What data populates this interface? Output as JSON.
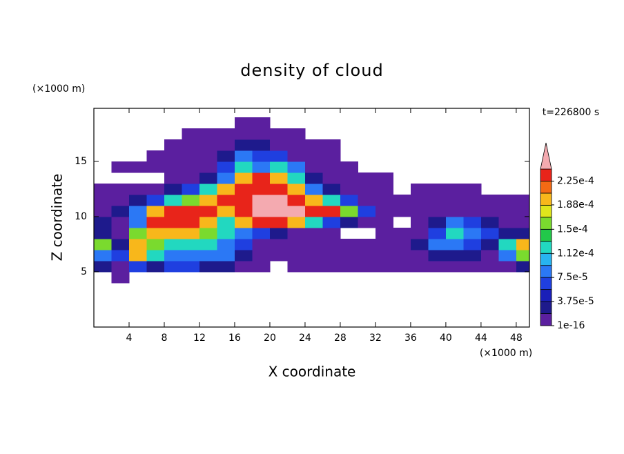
{
  "chart_data": {
    "type": "contour",
    "title": "density of cloud",
    "x_label": "X coordinate",
    "y_label": "Z coordinate",
    "x_unit": "(×1000 m)",
    "y_unit": "(×1000 m)",
    "annotation": "t=226800 s",
    "xlim": [
      0,
      49.5
    ],
    "ylim": [
      0,
      19.8
    ],
    "xticks": [
      4,
      8,
      12,
      16,
      20,
      24,
      28,
      32,
      36,
      40,
      44,
      48
    ],
    "yticks": [
      5,
      10,
      15
    ],
    "x": [
      1,
      3,
      5,
      7,
      9,
      11,
      13,
      15,
      17,
      19,
      21,
      23,
      25,
      27,
      29,
      31,
      33,
      35,
      37,
      39,
      41,
      43,
      45,
      47,
      49
    ],
    "y": [
      4.5,
      5.5,
      6.5,
      7.5,
      8.5,
      9.5,
      10.5,
      11.5,
      12.5,
      13.5,
      14.5,
      15.5,
      16.5,
      17.5,
      18.5
    ],
    "z": [
      [
        0,
        1e-05,
        0,
        0,
        0,
        0,
        0,
        0,
        0,
        0,
        0,
        0,
        0,
        0,
        0,
        0,
        0,
        0,
        0,
        0,
        0,
        0,
        0,
        0,
        0
      ],
      [
        3e-05,
        1e-05,
        6e-05,
        3e-05,
        6e-05,
        6e-05,
        3e-05,
        3e-05,
        1e-05,
        1e-05,
        0,
        1e-05,
        1e-05,
        1e-05,
        1e-05,
        1e-05,
        1e-05,
        1e-05,
        1e-05,
        1e-05,
        1e-05,
        1e-05,
        1e-05,
        1e-05,
        3e-05
      ],
      [
        9e-05,
        6e-05,
        0.0002,
        0.00012,
        9e-05,
        9e-05,
        9e-05,
        9e-05,
        3e-05,
        1e-05,
        1e-05,
        1e-05,
        1e-05,
        1e-05,
        1e-05,
        1e-05,
        1e-05,
        1e-05,
        1e-05,
        3e-05,
        3e-05,
        3e-05,
        1e-05,
        9e-05,
        0.00016
      ],
      [
        0.00016,
        3e-05,
        0.0002,
        0.00016,
        0.00012,
        0.00012,
        0.00012,
        9e-05,
        6e-05,
        1e-05,
        1e-05,
        1e-05,
        1e-05,
        1e-05,
        1e-05,
        1e-05,
        1e-05,
        1e-05,
        3e-05,
        9e-05,
        9e-05,
        6e-05,
        3e-05,
        0.00012,
        0.0002
      ],
      [
        3e-05,
        1e-05,
        0.00016,
        0.0002,
        0.0002,
        0.0002,
        0.00016,
        0.00012,
        9e-05,
        6e-05,
        3e-05,
        1e-05,
        1e-05,
        1e-05,
        0,
        0,
        1e-05,
        1e-05,
        1e-05,
        6e-05,
        0.00012,
        9e-05,
        6e-05,
        3e-05,
        3e-05
      ],
      [
        3e-05,
        1e-05,
        9e-05,
        0.00023,
        0.00023,
        0.00023,
        0.0002,
        0.00012,
        0.0002,
        0.00023,
        0.00023,
        0.0002,
        0.00012,
        6e-05,
        3e-05,
        1e-05,
        1e-05,
        0,
        1e-05,
        3e-05,
        9e-05,
        6e-05,
        3e-05,
        1e-05,
        1e-05
      ],
      [
        1e-05,
        3e-05,
        9e-05,
        0.0002,
        0.00023,
        0.00023,
        0.00023,
        0.0002,
        0.00023,
        0.00026,
        0.00026,
        0.00026,
        0.00023,
        0.00023,
        0.00016,
        6e-05,
        1e-05,
        1e-05,
        1e-05,
        1e-05,
        1e-05,
        1e-05,
        1e-05,
        1e-05,
        1e-05
      ],
      [
        1e-05,
        1e-05,
        3e-05,
        6e-05,
        0.00012,
        0.00016,
        0.0002,
        0.00023,
        0.00023,
        0.00026,
        0.00026,
        0.00023,
        0.0002,
        0.00012,
        6e-05,
        1e-05,
        1e-05,
        1e-05,
        1e-05,
        1e-05,
        1e-05,
        1e-05,
        1e-05,
        1e-05,
        1e-05
      ],
      [
        1e-05,
        1e-05,
        1e-05,
        1e-05,
        3e-05,
        6e-05,
        0.00012,
        0.0002,
        0.00023,
        0.00023,
        0.00023,
        0.0002,
        9e-05,
        3e-05,
        1e-05,
        1e-05,
        1e-05,
        0,
        1e-05,
        1e-05,
        1e-05,
        1e-05,
        0,
        0,
        0
      ],
      [
        0,
        0,
        0,
        0,
        1e-05,
        1e-05,
        3e-05,
        9e-05,
        0.0002,
        0.00023,
        0.0002,
        0.00012,
        3e-05,
        1e-05,
        1e-05,
        1e-05,
        1e-05,
        0,
        0,
        0,
        0,
        0,
        0,
        0,
        0
      ],
      [
        0,
        1e-05,
        1e-05,
        1e-05,
        1e-05,
        1e-05,
        1e-05,
        6e-05,
        0.00012,
        9e-05,
        0.00012,
        9e-05,
        1e-05,
        1e-05,
        1e-05,
        0,
        0,
        0,
        0,
        0,
        0,
        0,
        0,
        0,
        0
      ],
      [
        0,
        0,
        0,
        1e-05,
        1e-05,
        1e-05,
        1e-05,
        3e-05,
        9e-05,
        6e-05,
        6e-05,
        1e-05,
        1e-05,
        1e-05,
        0,
        0,
        0,
        0,
        0,
        0,
        0,
        0,
        0,
        0,
        0
      ],
      [
        0,
        0,
        0,
        0,
        1e-05,
        1e-05,
        1e-05,
        1e-05,
        3e-05,
        3e-05,
        1e-05,
        1e-05,
        1e-05,
        1e-05,
        0,
        0,
        0,
        0,
        0,
        0,
        0,
        0,
        0,
        0,
        0
      ],
      [
        0,
        0,
        0,
        0,
        0,
        1e-05,
        1e-05,
        1e-05,
        1e-05,
        1e-05,
        1e-05,
        1e-05,
        0,
        0,
        0,
        0,
        0,
        0,
        0,
        0,
        0,
        0,
        0,
        0,
        0
      ],
      [
        0,
        0,
        0,
        0,
        0,
        0,
        0,
        0,
        1e-05,
        1e-05,
        0,
        0,
        0,
        0,
        0,
        0,
        0,
        0,
        0,
        0,
        0,
        0,
        0,
        0,
        0
      ]
    ],
    "levels": [
      1e-16,
      1.875e-05,
      3.75e-05,
      5.625e-05,
      7.5e-05,
      9.375e-05,
      0.0001125,
      0.00013125,
      0.00015,
      0.00016875,
      0.0001875,
      0.00020625,
      0.000225,
      0.00024375
    ],
    "colors": [
      "#5b1f9f",
      "#1e1a8c",
      "#1a1fb8",
      "#1f3fe0",
      "#2b78f5",
      "#28b4f0",
      "#22d8c0",
      "#22c84a",
      "#7ada2e",
      "#dfe51c",
      "#f8b71b",
      "#f36a14",
      "#e8241a"
    ],
    "extend_color": "#f4aab0",
    "colorbar_ticks": [
      {
        "value": 1e-16,
        "label": "1e-16"
      },
      {
        "value": 3.75e-05,
        "label": "3.75e-5"
      },
      {
        "value": 7.5e-05,
        "label": "7.5e-5"
      },
      {
        "value": 0.000112,
        "label": "1.12e-4"
      },
      {
        "value": 0.00015,
        "label": "1.5e-4"
      },
      {
        "value": 0.000188,
        "label": "1.88e-4"
      },
      {
        "value": 0.000225,
        "label": "2.25e-4"
      }
    ]
  }
}
